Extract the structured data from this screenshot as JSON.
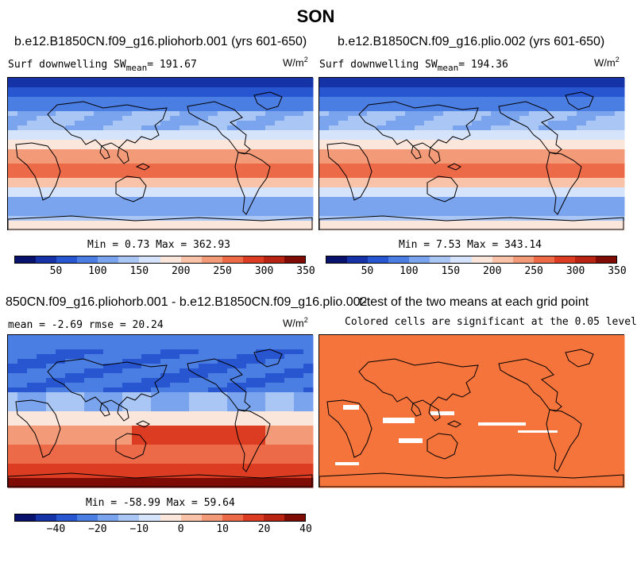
{
  "title": "SON",
  "panel_left": {
    "case": "b.e12.B1850CN.f09_g16.pliohorb.001 (yrs 601-650)",
    "variable": "Surf downwelling SW",
    "mean_sub": "mean",
    "mean_value": "= 191.67",
    "unit_base": "W/m",
    "unit_exp": "2",
    "minmax": "Min =   0.73 Max = 362.93"
  },
  "panel_right": {
    "case": "b.e12.B1850CN.f09_g16.plio.002 (yrs 601-650)",
    "variable": "Surf downwelling SW",
    "mean_sub": "mean",
    "mean_value": "= 194.36",
    "unit_base": "W/m",
    "unit_exp": "2",
    "minmax": "Min =   7.53 Max = 343.14"
  },
  "panel_diff": {
    "case": "850CN.f09_g16.pliohorb.001 - b.e12.B1850CN.f09_g16.plio.002",
    "stats": "mean =  -2.69    rmse =  20.24",
    "unit_base": "W/m",
    "unit_exp": "2",
    "minmax": "Min = -58.99 Max =  59.64"
  },
  "panel_ttest": {
    "title": "t-test of the two means at each grid point",
    "subtitle": "Colored cells are significant at the 0.05 level",
    "significant_color": "#f4743b"
  },
  "colorbar_abs": {
    "labels": [
      "50",
      "100",
      "150",
      "200",
      "250",
      "300",
      "350"
    ],
    "colors": [
      "#08116b",
      "#1532a6",
      "#2756d0",
      "#4b7ee3",
      "#7ba4ee",
      "#a9c6f4",
      "#d5e4fa",
      "#fbe6dc",
      "#f8c3a8",
      "#f39a78",
      "#ec6a48",
      "#dc3d22",
      "#b82312",
      "#7e0c05"
    ]
  },
  "colorbar_diff": {
    "labels": [
      "−40",
      "−20",
      "−10",
      "0",
      "10",
      "20",
      "40"
    ],
    "colors": [
      "#08116b",
      "#1532a6",
      "#2756d0",
      "#4b7ee3",
      "#7ba4ee",
      "#a9c6f4",
      "#d5e4fa",
      "#fbe6dc",
      "#f8c3a8",
      "#f39a78",
      "#ec6a48",
      "#dc3d22",
      "#b82312",
      "#7e0c05"
    ]
  }
}
